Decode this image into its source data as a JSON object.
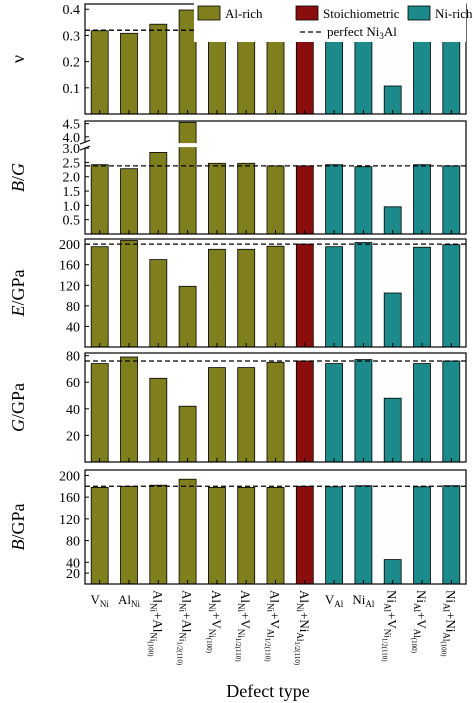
{
  "figure": {
    "xlabel": "Defect type",
    "categories": [
      {
        "base": "V",
        "sub": "Ni"
      },
      {
        "base": "Al",
        "sub": "Ni"
      },
      {
        "base": "Al",
        "sub": "Ni",
        "rest": "+Al",
        "sub2": "Ni",
        "subsub": "(100)"
      },
      {
        "base": "Al",
        "sub": "Ni",
        "rest": "+Al",
        "sub2": "Ni",
        "subsub": "1/2(110)"
      },
      {
        "base": "Al",
        "sub": "Ni",
        "rest": "+V",
        "sub2": "Ni",
        "subsub": "(100)"
      },
      {
        "base": "Al",
        "sub": "Ni",
        "rest": "+V",
        "sub2": "Ni",
        "subsub": "1/2(110)"
      },
      {
        "base": "Al",
        "sub": "Ni",
        "rest": "+V",
        "sub2": "Al",
        "subsub": "1/2(110)"
      },
      {
        "base": "Al",
        "sub": "Ni",
        "rest": "+Ni",
        "sub2": "Al",
        "subsub": "1/2(110)"
      },
      {
        "base": "V",
        "sub": "Al"
      },
      {
        "base": "Ni",
        "sub": "Al"
      },
      {
        "base": "Ni",
        "sub": "Al",
        "rest": "+V",
        "sub2": "Ni",
        "subsub": "1/2(110)"
      },
      {
        "base": "Ni",
        "sub": "Al",
        "rest": "+V",
        "sub2": "Al",
        "subsub": "(100)"
      },
      {
        "base": "Ni",
        "sub": "Al",
        "rest": "+Ni",
        "sub2": "Al",
        "subsub": "(100)"
      }
    ],
    "legend": {
      "items": [
        {
          "label": "Al-rich",
          "color": "#7f7f1e"
        },
        {
          "label": "Stoichiometric",
          "color": "#8b0e0e"
        },
        {
          "label": "Ni-rich",
          "color": "#1c8a8a"
        }
      ],
      "reference": {
        "label": "perfect Ni",
        "sub": "3",
        "suffix": "Al"
      }
    }
  },
  "chart_data": [
    {
      "type": "bar",
      "ylabel": "ν",
      "ylim": [
        0,
        0.42
      ],
      "ticks": [
        "0.1",
        "0.2",
        "0.3",
        "0.4"
      ],
      "tick_values": [
        0.1,
        0.2,
        0.3,
        0.4
      ],
      "reference": 0.32,
      "values": [
        0.318,
        0.308,
        0.343,
        0.397,
        0.32,
        0.32,
        0.318,
        0.318,
        0.32,
        0.313,
        0.107,
        0.32,
        0.318
      ],
      "groups": [
        "Al-rich",
        "Al-rich",
        "Al-rich",
        "Al-rich",
        "Al-rich",
        "Al-rich",
        "Al-rich",
        "Stoichiometric",
        "Ni-rich",
        "Ni-rich",
        "Ni-rich",
        "Ni-rich",
        "Ni-rich"
      ]
    },
    {
      "type": "bar",
      "ylabel": "B/G",
      "ylim": [
        0,
        4.6
      ],
      "axis_break": [
        3.0,
        3.8
      ],
      "ticks": [
        "0.5",
        "1.0",
        "1.5",
        "2.0",
        "2.5",
        "3.0",
        "4.0",
        "4.5"
      ],
      "tick_values": [
        0.5,
        1.0,
        1.5,
        2.0,
        2.5,
        3.0,
        4.0,
        4.5
      ],
      "reference": 2.38,
      "values": [
        2.42,
        2.28,
        2.85,
        4.55,
        2.47,
        2.47,
        2.38,
        2.38,
        2.42,
        2.35,
        0.95,
        2.42,
        2.38
      ],
      "groups": [
        "Al-rich",
        "Al-rich",
        "Al-rich",
        "Al-rich",
        "Al-rich",
        "Al-rich",
        "Al-rich",
        "Stoichiometric",
        "Ni-rich",
        "Ni-rich",
        "Ni-rich",
        "Ni-rich",
        "Ni-rich"
      ]
    },
    {
      "type": "bar",
      "ylabel": "E/GPa",
      "ylim": [
        0,
        210
      ],
      "ticks": [
        "40",
        "80",
        "120",
        "160",
        "200"
      ],
      "tick_values": [
        40,
        80,
        120,
        160,
        200
      ],
      "reference": 200,
      "values": [
        195,
        207,
        170,
        118,
        190,
        190,
        196,
        200,
        195,
        203,
        105,
        194,
        199
      ],
      "groups": [
        "Al-rich",
        "Al-rich",
        "Al-rich",
        "Al-rich",
        "Al-rich",
        "Al-rich",
        "Al-rich",
        "Stoichiometric",
        "Ni-rich",
        "Ni-rich",
        "Ni-rich",
        "Ni-rich",
        "Ni-rich"
      ]
    },
    {
      "type": "bar",
      "ylabel": "G/GPa",
      "ylim": [
        0,
        82
      ],
      "ticks": [
        "20",
        "40",
        "60",
        "80"
      ],
      "tick_values": [
        20,
        40,
        60,
        80
      ],
      "reference": 76,
      "values": [
        74,
        79,
        63,
        42,
        71,
        71,
        75,
        76,
        74,
        77,
        48,
        74,
        76
      ],
      "groups": [
        "Al-rich",
        "Al-rich",
        "Al-rich",
        "Al-rich",
        "Al-rich",
        "Al-rich",
        "Al-rich",
        "Stoichiometric",
        "Ni-rich",
        "Ni-rich",
        "Ni-rich",
        "Ni-rich",
        "Ni-rich"
      ]
    },
    {
      "type": "bar",
      "ylabel": "B/GPa",
      "ylim": [
        0,
        210
      ],
      "ticks": [
        "20",
        "40",
        "80",
        "120",
        "160",
        "200"
      ],
      "tick_values": [
        20,
        40,
        80,
        120,
        160,
        200
      ],
      "reference": 180,
      "values": [
        178,
        180,
        182,
        193,
        178,
        178,
        178,
        180,
        179,
        181,
        45,
        179,
        181
      ],
      "groups": [
        "Al-rich",
        "Al-rich",
        "Al-rich",
        "Al-rich",
        "Al-rich",
        "Al-rich",
        "Al-rich",
        "Stoichiometric",
        "Ni-rich",
        "Ni-rich",
        "Ni-rich",
        "Ni-rich",
        "Ni-rich"
      ]
    }
  ]
}
